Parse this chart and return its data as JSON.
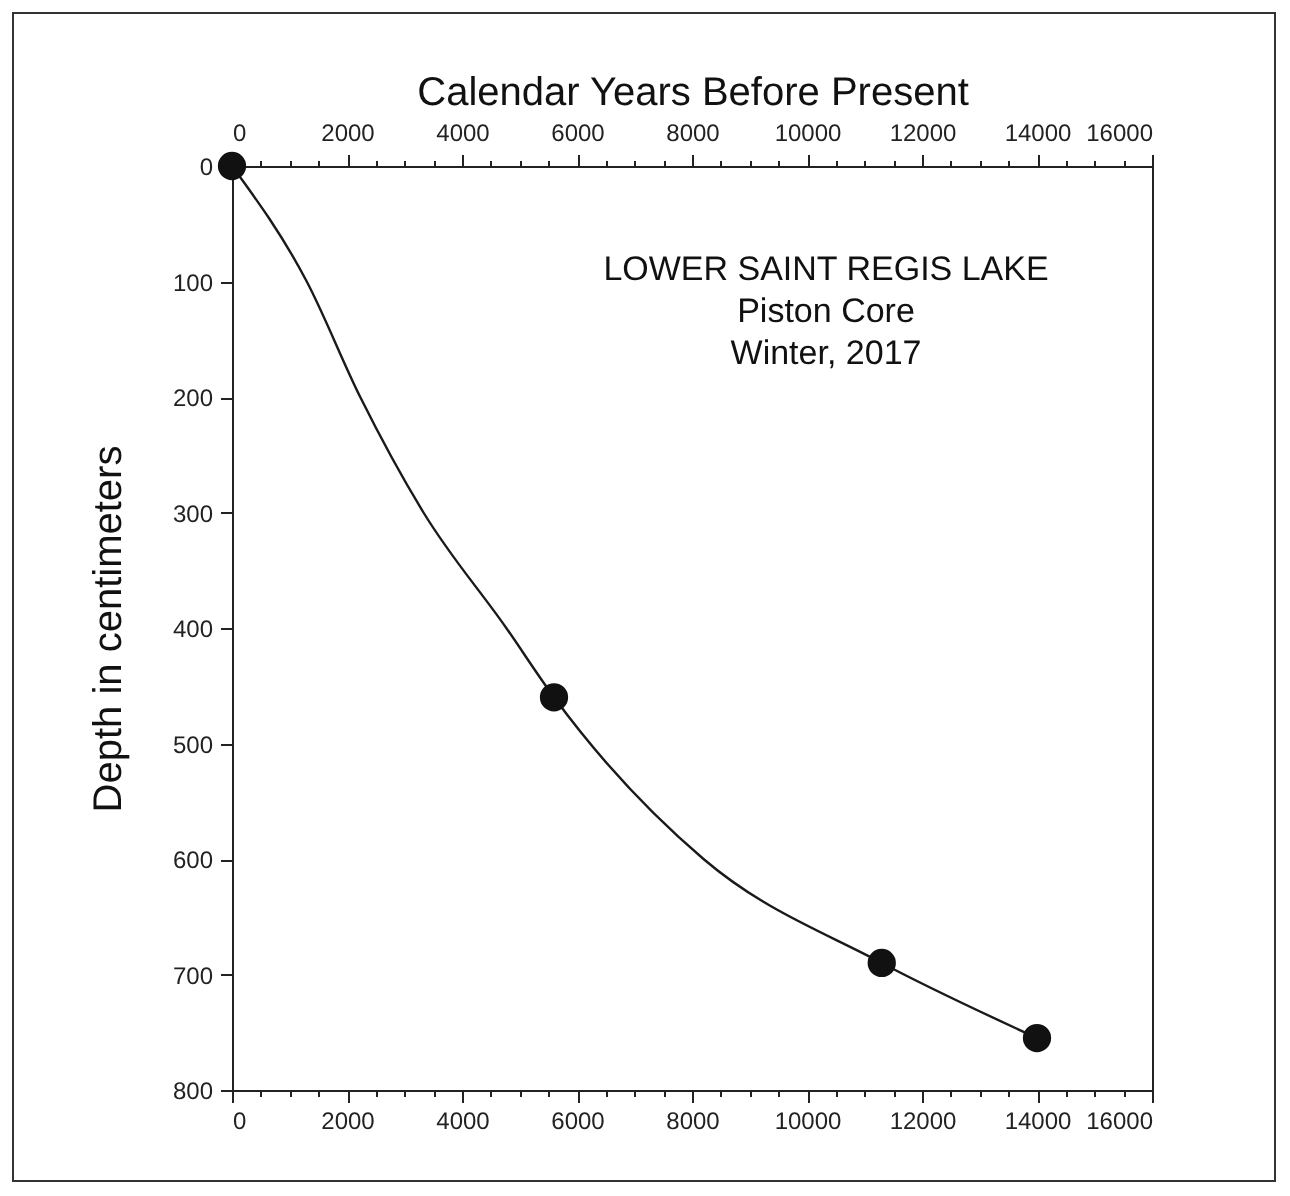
{
  "chart_data": {
    "type": "scatter",
    "x2label": "Calendar Years Before Present",
    "ylabel": "Depth in centimeters",
    "annotations": [
      "LOWER SAINT REGIS LAKE",
      "Piston Core",
      "Winter, 2017"
    ],
    "series": [
      {
        "type": "line",
        "color": "#1a1a1a",
        "marker": "none",
        "x": [
          0,
          1300,
          2230,
          3330,
          4770,
          5600,
          8200,
          11300,
          14000
        ],
        "values": [
          0,
          100,
          200,
          300,
          400,
          460,
          600,
          690,
          755
        ]
      },
      {
        "color": "#111111",
        "marker": "circle",
        "x": [
          0,
          5600,
          11300,
          14000
        ],
        "values": [
          0,
          460,
          690,
          755
        ]
      }
    ],
    "xlim": [
      0,
      16000
    ],
    "ylim": [
      800,
      0
    ],
    "x2lim": [
      0,
      16000
    ],
    "xticks": [
      0,
      {
        "value": 500,
        "label": null
      },
      {
        "value": 1000,
        "label": null
      },
      {
        "value": 1500,
        "label": null
      },
      2000,
      {
        "value": 2500,
        "label": null
      },
      {
        "value": 3000,
        "label": null
      },
      {
        "value": 3500,
        "label": null
      },
      4000,
      {
        "value": 4500,
        "label": null
      },
      {
        "value": 5000,
        "label": null
      },
      {
        "value": 5500,
        "label": null
      },
      6000,
      {
        "value": 6500,
        "label": null
      },
      {
        "value": 7000,
        "label": null
      },
      {
        "value": 7500,
        "label": null
      },
      8000,
      {
        "value": 8500,
        "label": null
      },
      {
        "value": 9000,
        "label": null
      },
      {
        "value": 9500,
        "label": null
      },
      10000,
      {
        "value": 10500,
        "label": null
      },
      {
        "value": 11000,
        "label": null
      },
      {
        "value": 11500,
        "label": null
      },
      12000,
      {
        "value": 12500,
        "label": null
      },
      {
        "value": 13000,
        "label": null
      },
      {
        "value": 13500,
        "label": null
      },
      14000,
      {
        "value": 14500,
        "label": null
      },
      {
        "value": 15000,
        "label": null
      },
      {
        "value": 15500,
        "label": null
      },
      16000
    ],
    "x2ticks": [
      0,
      {
        "value": 500,
        "label": null
      },
      {
        "value": 1000,
        "label": null
      },
      {
        "value": 1500,
        "label": null
      },
      2000,
      {
        "value": 2500,
        "label": null
      },
      {
        "value": 3000,
        "label": null
      },
      {
        "value": 3500,
        "label": null
      },
      4000,
      {
        "value": 4500,
        "label": null
      },
      {
        "value": 5000,
        "label": null
      },
      {
        "value": 5500,
        "label": null
      },
      6000,
      {
        "value": 6500,
        "label": null
      },
      {
        "value": 7000,
        "label": null
      },
      {
        "value": 7500,
        "label": null
      },
      8000,
      {
        "value": 8500,
        "label": null
      },
      {
        "value": 9000,
        "label": null
      },
      {
        "value": 9500,
        "label": null
      },
      10000,
      {
        "value": 10500,
        "label": null
      },
      {
        "value": 11000,
        "label": null
      },
      {
        "value": 11500,
        "label": null
      },
      12000,
      {
        "value": 12500,
        "label": null
      },
      {
        "value": 13000,
        "label": null
      },
      {
        "value": 13500,
        "label": null
      },
      14000,
      {
        "value": 14500,
        "label": null
      },
      {
        "value": 15000,
        "label": null
      },
      {
        "value": 15500,
        "label": null
      },
      16000
    ],
    "yticks": [
      0,
      100,
      200,
      300,
      400,
      500,
      600,
      700,
      800
    ],
    "grid": false
  }
}
